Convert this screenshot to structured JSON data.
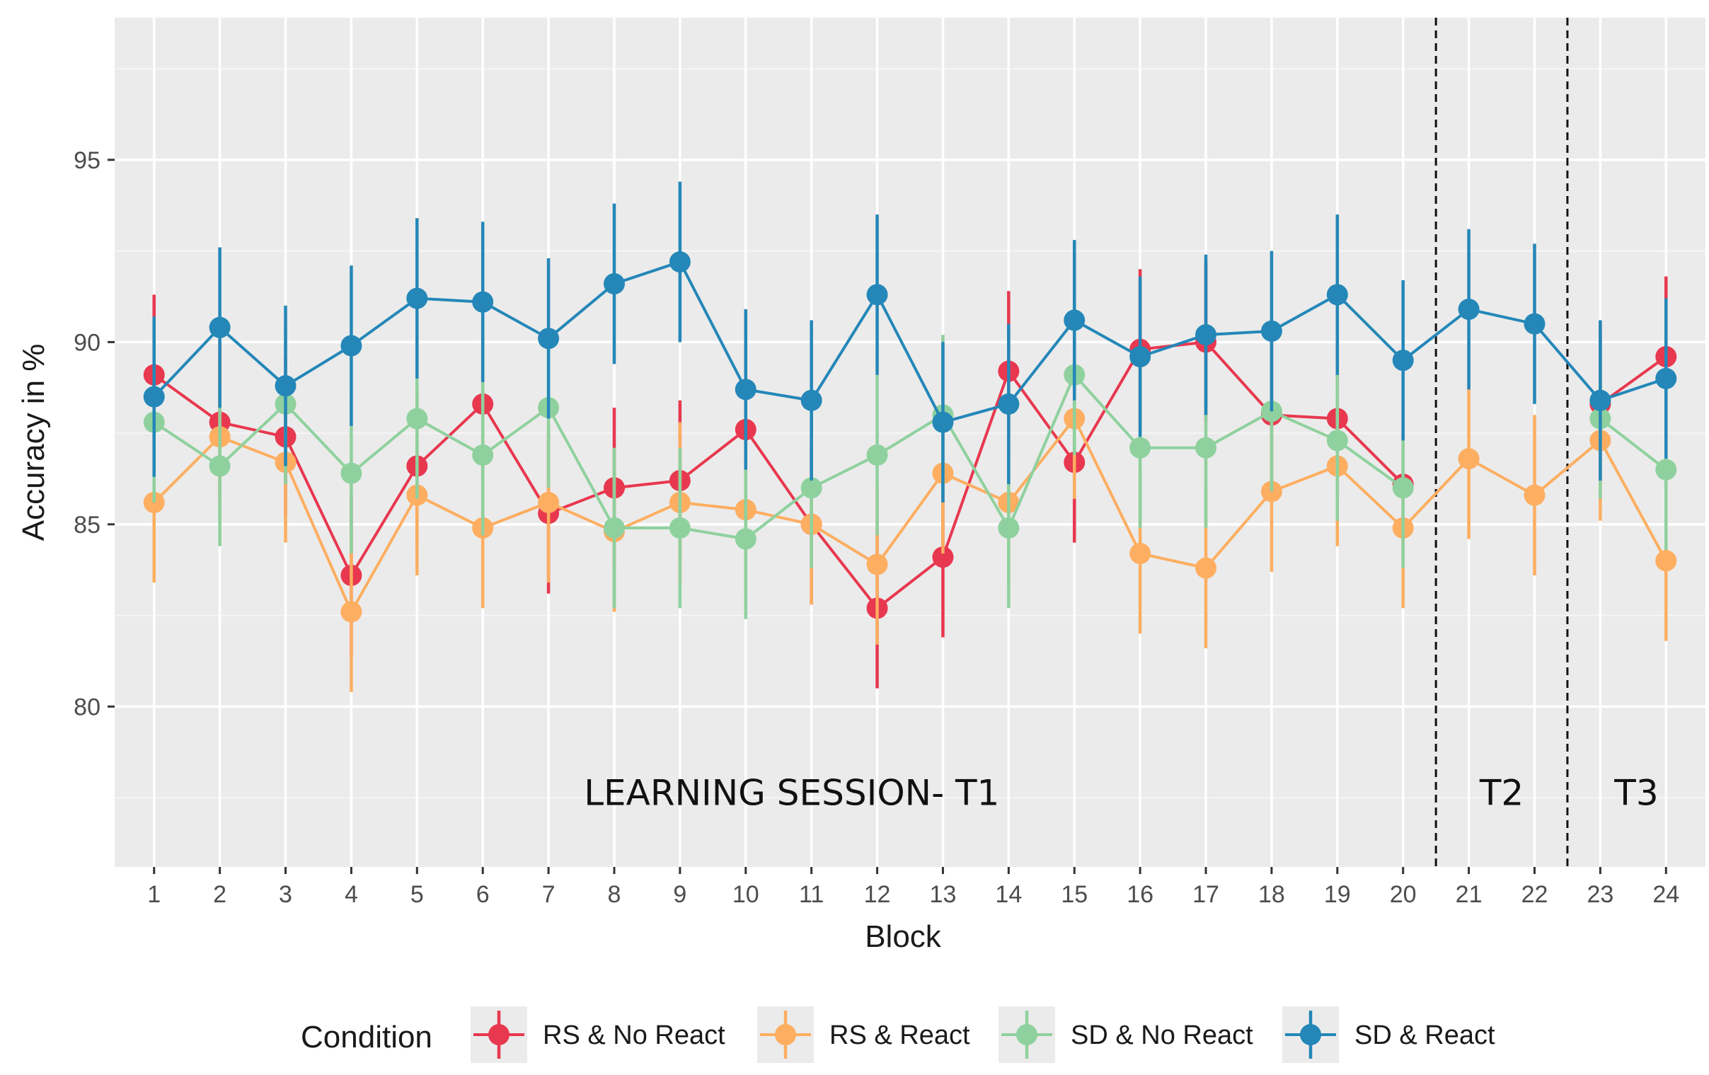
{
  "chart_data": {
    "type": "line",
    "title": "",
    "xlabel": "Block",
    "ylabel": "Accuracy in %",
    "x": [
      1,
      2,
      3,
      4,
      5,
      6,
      7,
      8,
      9,
      10,
      11,
      12,
      13,
      14,
      15,
      16,
      17,
      18,
      19,
      20,
      21,
      22,
      23,
      24
    ],
    "x_tick_labels": [
      "1",
      "2",
      "3",
      "4",
      "5",
      "6",
      "7",
      "8",
      "9",
      "10",
      "11",
      "12",
      "13",
      "14",
      "15",
      "16",
      "17",
      "18",
      "19",
      "20",
      "21",
      "22",
      "23",
      "24"
    ],
    "ylim": [
      75.6,
      98.9
    ],
    "xlim": [
      0.4,
      24.6
    ],
    "y_ticks": [
      80,
      85,
      90,
      95
    ],
    "y_tick_labels": [
      "80",
      "85",
      "90",
      "95"
    ],
    "error_bar_halfwidth": 2.2,
    "session_breaks": [
      20.5,
      22.5
    ],
    "annotations": [
      {
        "text": "LEARNING SESSION- T1",
        "x": 10.7,
        "y": 77.3
      },
      {
        "text": "T2",
        "x": 21.5,
        "y": 77.3
      },
      {
        "text": "T3",
        "x": 23.55,
        "y": 77.3
      }
    ],
    "legend": {
      "title": "Condition",
      "position": "bottom"
    },
    "series": [
      {
        "name": "RS & No React",
        "color": "#e8384f",
        "values": [
          89.1,
          87.8,
          87.4,
          83.6,
          86.6,
          88.3,
          85.3,
          86.0,
          86.2,
          87.6,
          85.0,
          82.7,
          84.1,
          89.2,
          86.7,
          89.8,
          90.0,
          88.0,
          87.9,
          86.1,
          null,
          null,
          88.3,
          89.6
        ]
      },
      {
        "name": "RS & React",
        "color": "#fdae61",
        "values": [
          85.6,
          87.4,
          86.7,
          82.6,
          85.8,
          84.9,
          85.6,
          84.8,
          85.6,
          85.4,
          85.0,
          83.9,
          86.4,
          85.6,
          87.9,
          84.2,
          83.8,
          85.9,
          86.6,
          84.9,
          86.8,
          85.8,
          87.3,
          84.0
        ]
      },
      {
        "name": "SD & No React",
        "color": "#8fd19e",
        "values": [
          87.8,
          86.6,
          88.3,
          86.4,
          87.9,
          86.9,
          88.2,
          84.9,
          84.9,
          84.6,
          86.0,
          86.9,
          88.0,
          84.9,
          89.1,
          87.1,
          87.1,
          88.1,
          87.3,
          86.0,
          null,
          null,
          87.9,
          86.5
        ]
      },
      {
        "name": "SD & React",
        "color": "#2487b8",
        "values": [
          88.5,
          90.4,
          88.8,
          89.9,
          91.2,
          91.1,
          90.1,
          91.6,
          92.2,
          88.7,
          88.4,
          91.3,
          87.8,
          88.3,
          90.6,
          89.6,
          90.2,
          90.3,
          91.3,
          89.5,
          90.9,
          90.5,
          88.4,
          89.0
        ]
      }
    ]
  }
}
